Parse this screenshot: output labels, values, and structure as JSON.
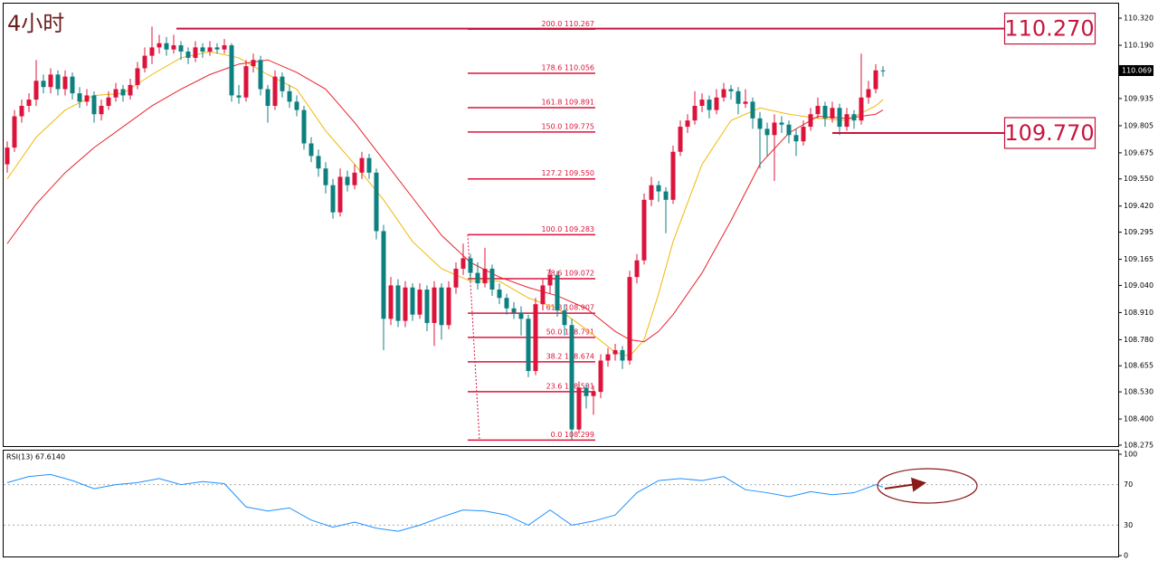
{
  "chart_data": [
    {
      "type": "candlestick",
      "title": "4小时",
      "bull_color": "#dc143c",
      "bear_color": "#0f8080",
      "ylim": [
        108.266,
        110.394
      ],
      "yticks": [
        {
          "value": 110.32,
          "label": "110.320"
        },
        {
          "value": 110.19,
          "label": "110.190"
        },
        {
          "value": 109.935,
          "label": "109.935"
        },
        {
          "value": 109.805,
          "label": "109.805"
        },
        {
          "value": 109.675,
          "label": "109.675"
        },
        {
          "value": 109.55,
          "label": "109.550"
        },
        {
          "value": 109.42,
          "label": "109.420"
        },
        {
          "value": 109.295,
          "label": "109.295"
        },
        {
          "value": 109.165,
          "label": "109.165"
        },
        {
          "value": 109.04,
          "label": "109.040"
        },
        {
          "value": 108.91,
          "label": "108.910"
        },
        {
          "value": 108.78,
          "label": "108.780"
        },
        {
          "value": 108.655,
          "label": "108.655"
        },
        {
          "value": 108.53,
          "label": "108.530"
        },
        {
          "value": 108.4,
          "label": "108.400"
        },
        {
          "value": 108.275,
          "label": "108.275"
        }
      ],
      "current_price": {
        "value": 110.069,
        "label": "110.069"
      },
      "fib_color": "#dc143c",
      "fib_levels": [
        {
          "label": "200.0 110.267",
          "value": 110.267
        },
        {
          "label": "178.6 110.056",
          "value": 110.056
        },
        {
          "label": "161.8 109.891",
          "value": 109.891
        },
        {
          "label": "150.0 109.775",
          "value": 109.775
        },
        {
          "label": "127.2 109.550",
          "value": 109.55
        },
        {
          "label": "100.0 109.283",
          "value": 109.283
        },
        {
          "label": "78.6 109.072",
          "value": 109.072
        },
        {
          "label": "61.8 108.907",
          "value": 108.907
        },
        {
          "label": "50.0 108.791",
          "value": 108.791
        },
        {
          "label": "38.2 108.674",
          "value": 108.674
        },
        {
          "label": "23.6 108.531",
          "value": 108.531
        },
        {
          "label": "0.0 108.299",
          "value": 108.299
        }
      ],
      "annotations": [
        {
          "label": "110.270",
          "value": 110.27
        },
        {
          "label": "109.770",
          "value": 109.77
        }
      ],
      "ohlc": [
        [
          109.62,
          109.73,
          109.58,
          109.7
        ],
        [
          109.7,
          109.88,
          109.68,
          109.85
        ],
        [
          109.85,
          109.93,
          109.82,
          109.9
        ],
        [
          109.9,
          109.96,
          109.87,
          109.93
        ],
        [
          109.93,
          110.12,
          109.9,
          110.02
        ],
        [
          110.02,
          110.05,
          109.96,
          109.99
        ],
        [
          109.99,
          110.08,
          109.96,
          110.05
        ],
        [
          110.05,
          110.07,
          109.95,
          109.98
        ],
        [
          109.98,
          110.07,
          109.95,
          110.04
        ],
        [
          110.04,
          110.06,
          109.93,
          109.96
        ],
        [
          109.96,
          109.99,
          109.89,
          109.92
        ],
        [
          109.92,
          109.98,
          109.9,
          109.95
        ],
        [
          109.95,
          109.97,
          109.82,
          109.86
        ],
        [
          109.86,
          109.93,
          109.83,
          109.9
        ],
        [
          109.9,
          109.97,
          109.88,
          109.94
        ],
        [
          109.94,
          110.01,
          109.92,
          109.98
        ],
        [
          109.98,
          110.0,
          109.92,
          109.95
        ],
        [
          109.95,
          110.03,
          109.93,
          110.0
        ],
        [
          110.0,
          110.11,
          109.98,
          110.08
        ],
        [
          110.08,
          110.18,
          110.06,
          110.14
        ],
        [
          110.14,
          110.28,
          110.1,
          110.18
        ],
        [
          110.18,
          110.24,
          110.15,
          110.2
        ],
        [
          110.2,
          110.23,
          110.14,
          110.17
        ],
        [
          110.17,
          110.24,
          110.15,
          110.19
        ],
        [
          110.19,
          110.21,
          110.12,
          110.16
        ],
        [
          110.16,
          110.18,
          110.1,
          110.13
        ],
        [
          110.13,
          110.21,
          110.11,
          110.18
        ],
        [
          110.18,
          110.2,
          110.13,
          110.16
        ],
        [
          110.16,
          110.21,
          110.14,
          110.18
        ],
        [
          110.18,
          110.2,
          110.15,
          110.17
        ],
        [
          110.17,
          110.22,
          110.15,
          110.19
        ],
        [
          110.19,
          110.2,
          109.92,
          109.95
        ],
        [
          109.95,
          110.0,
          109.91,
          109.94
        ],
        [
          109.94,
          110.12,
          109.92,
          110.09
        ],
        [
          110.09,
          110.15,
          110.06,
          110.12
        ],
        [
          110.12,
          110.14,
          109.95,
          109.98
        ],
        [
          109.98,
          110.0,
          109.82,
          109.9
        ],
        [
          109.9,
          110.07,
          109.88,
          110.04
        ],
        [
          110.04,
          110.06,
          109.94,
          109.97
        ],
        [
          109.97,
          110.0,
          109.89,
          109.92
        ],
        [
          109.92,
          109.95,
          109.85,
          109.88
        ],
        [
          109.88,
          109.9,
          109.69,
          109.72
        ],
        [
          109.72,
          109.75,
          109.63,
          109.66
        ],
        [
          109.66,
          109.69,
          109.56,
          109.6
        ],
        [
          109.6,
          109.63,
          109.48,
          109.52
        ],
        [
          109.52,
          109.55,
          109.36,
          109.39
        ],
        [
          109.39,
          109.6,
          109.37,
          109.56
        ],
        [
          109.56,
          109.59,
          109.49,
          109.52
        ],
        [
          109.52,
          109.62,
          109.5,
          109.58
        ],
        [
          109.58,
          109.68,
          109.55,
          109.65
        ],
        [
          109.65,
          109.67,
          109.55,
          109.58
        ],
        [
          109.58,
          109.6,
          109.26,
          109.3
        ],
        [
          109.3,
          109.33,
          108.73,
          108.88
        ],
        [
          108.88,
          109.08,
          108.85,
          109.04
        ],
        [
          109.04,
          109.07,
          108.84,
          108.87
        ],
        [
          108.87,
          109.06,
          108.84,
          109.03
        ],
        [
          109.03,
          109.05,
          108.87,
          108.9
        ],
        [
          108.9,
          109.05,
          108.88,
          109.02
        ],
        [
          109.02,
          109.04,
          108.82,
          108.86
        ],
        [
          108.86,
          109.06,
          108.75,
          109.03
        ],
        [
          109.03,
          109.05,
          108.78,
          108.85
        ],
        [
          108.85,
          109.06,
          108.83,
          109.03
        ],
        [
          109.03,
          109.15,
          109.0,
          109.12
        ],
        [
          109.12,
          109.24,
          109.09,
          109.17
        ],
        [
          109.17,
          109.19,
          109.06,
          109.1
        ],
        [
          109.1,
          109.15,
          109.02,
          109.05
        ],
        [
          109.05,
          109.22,
          109.03,
          109.12
        ],
        [
          109.12,
          109.14,
          108.99,
          109.02
        ],
        [
          109.02,
          109.05,
          108.95,
          108.98
        ],
        [
          108.98,
          109.0,
          108.9,
          108.93
        ],
        [
          108.93,
          108.96,
          108.88,
          108.91
        ],
        [
          108.91,
          108.94,
          108.8,
          108.88
        ],
        [
          108.88,
          108.9,
          108.6,
          108.63
        ],
        [
          108.63,
          108.98,
          108.61,
          108.95
        ],
        [
          108.95,
          109.07,
          108.92,
          109.04
        ],
        [
          109.04,
          109.12,
          109.0,
          109.09
        ],
        [
          109.09,
          109.11,
          108.89,
          108.92
        ],
        [
          108.92,
          108.95,
          108.8,
          108.85
        ],
        [
          108.85,
          108.88,
          108.3,
          108.35
        ],
        [
          108.35,
          108.58,
          108.33,
          108.55
        ],
        [
          108.55,
          108.57,
          108.45,
          108.51
        ],
        [
          108.51,
          108.56,
          108.42,
          108.53
        ],
        [
          108.53,
          108.71,
          108.5,
          108.68
        ],
        [
          108.68,
          108.74,
          108.65,
          108.71
        ],
        [
          108.71,
          108.76,
          108.68,
          108.73
        ],
        [
          108.73,
          108.75,
          108.64,
          108.68
        ],
        [
          108.68,
          109.11,
          108.66,
          109.08
        ],
        [
          109.08,
          109.19,
          109.05,
          109.16
        ],
        [
          109.16,
          109.48,
          109.14,
          109.45
        ],
        [
          109.45,
          109.56,
          109.42,
          109.52
        ],
        [
          109.52,
          109.54,
          109.44,
          109.49
        ],
        [
          109.49,
          109.51,
          109.29,
          109.45
        ],
        [
          109.45,
          109.71,
          109.43,
          109.68
        ],
        [
          109.68,
          109.83,
          109.66,
          109.8
        ],
        [
          109.8,
          109.86,
          109.77,
          109.83
        ],
        [
          109.83,
          109.97,
          109.81,
          109.9
        ],
        [
          109.9,
          109.96,
          109.87,
          109.93
        ],
        [
          109.93,
          109.95,
          109.84,
          109.88
        ],
        [
          109.88,
          109.98,
          109.86,
          109.94
        ],
        [
          109.94,
          110.01,
          109.92,
          109.98
        ],
        [
          109.98,
          110.0,
          109.93,
          109.97
        ],
        [
          109.97,
          109.99,
          109.86,
          109.91
        ],
        [
          109.91,
          109.98,
          109.89,
          109.92
        ],
        [
          109.92,
          109.94,
          109.79,
          109.84
        ],
        [
          109.84,
          109.87,
          109.6,
          109.79
        ],
        [
          109.79,
          109.82,
          109.66,
          109.76
        ],
        [
          109.76,
          109.86,
          109.54,
          109.82
        ],
        [
          109.82,
          109.85,
          109.77,
          109.81
        ],
        [
          109.81,
          109.83,
          109.72,
          109.76
        ],
        [
          109.76,
          109.79,
          109.66,
          109.73
        ],
        [
          109.73,
          109.83,
          109.71,
          109.8
        ],
        [
          109.8,
          109.89,
          109.78,
          109.86
        ],
        [
          109.86,
          109.94,
          109.84,
          109.9
        ],
        [
          109.9,
          109.92,
          109.8,
          109.84
        ],
        [
          109.84,
          109.92,
          109.82,
          109.89
        ],
        [
          109.89,
          109.91,
          109.76,
          109.8
        ],
        [
          109.8,
          109.89,
          109.78,
          109.86
        ],
        [
          109.86,
          109.88,
          109.79,
          109.83
        ],
        [
          109.83,
          110.15,
          109.81,
          109.94
        ],
        [
          109.94,
          110.02,
          109.91,
          109.98
        ],
        [
          109.98,
          110.1,
          109.96,
          110.07
        ],
        [
          110.07,
          110.09,
          110.04,
          110.069
        ]
      ],
      "moving_averages": [
        {
          "color": "#f2b807",
          "x": [
            0,
            4,
            8,
            12,
            16,
            20,
            24,
            28,
            32,
            36,
            40,
            44,
            48,
            52,
            56,
            60,
            64,
            68,
            72,
            76,
            80,
            84,
            86,
            88,
            90,
            92,
            96,
            100,
            104,
            108,
            112,
            116,
            120,
            121
          ],
          "values": [
            109.55,
            109.75,
            109.88,
            109.95,
            109.96,
            110.05,
            110.13,
            110.16,
            110.13,
            110.05,
            109.98,
            109.78,
            109.62,
            109.45,
            109.25,
            109.12,
            109.06,
            109.06,
            108.98,
            108.93,
            108.83,
            108.72,
            108.7,
            108.78,
            109.0,
            109.25,
            109.62,
            109.83,
            109.89,
            109.86,
            109.84,
            109.83,
            109.9,
            109.93
          ]
        },
        {
          "color": "#e8232a",
          "x": [
            0,
            4,
            8,
            12,
            16,
            20,
            24,
            28,
            32,
            36,
            40,
            44,
            48,
            52,
            56,
            60,
            64,
            68,
            72,
            76,
            80,
            84,
            86,
            88,
            90,
            92,
            96,
            100,
            104,
            108,
            112,
            116,
            120,
            121
          ],
          "values": [
            109.24,
            109.43,
            109.58,
            109.7,
            109.8,
            109.9,
            109.98,
            110.05,
            110.1,
            110.12,
            110.06,
            109.98,
            109.82,
            109.64,
            109.46,
            109.28,
            109.15,
            109.08,
            109.03,
            108.99,
            108.93,
            108.82,
            108.78,
            108.77,
            108.82,
            108.9,
            109.1,
            109.35,
            109.62,
            109.77,
            109.85,
            109.84,
            109.86,
            109.88
          ]
        }
      ]
    },
    {
      "type": "line",
      "title": "RSI(13) 67.6140",
      "color": "#1e90ff",
      "ylim": [
        0,
        100
      ],
      "yticks": [
        100,
        70,
        30,
        0
      ],
      "x": [
        0,
        3,
        6,
        9,
        12,
        15,
        18,
        21,
        24,
        27,
        30,
        33,
        36,
        39,
        42,
        45,
        48,
        51,
        54,
        57,
        60,
        63,
        66,
        69,
        72,
        75,
        78,
        81,
        84,
        87,
        90,
        93,
        96,
        99,
        102,
        105,
        108,
        111,
        114,
        117,
        120,
        121
      ],
      "values": [
        72,
        78,
        80,
        74,
        66,
        70,
        72,
        76,
        70,
        73,
        71,
        48,
        44,
        47,
        35,
        28,
        33,
        27,
        24,
        30,
        38,
        45,
        44,
        40,
        30,
        45,
        30,
        34,
        40,
        62,
        74,
        76,
        74,
        78,
        65,
        62,
        58,
        63,
        60,
        62,
        70,
        67.614
      ]
    }
  ]
}
